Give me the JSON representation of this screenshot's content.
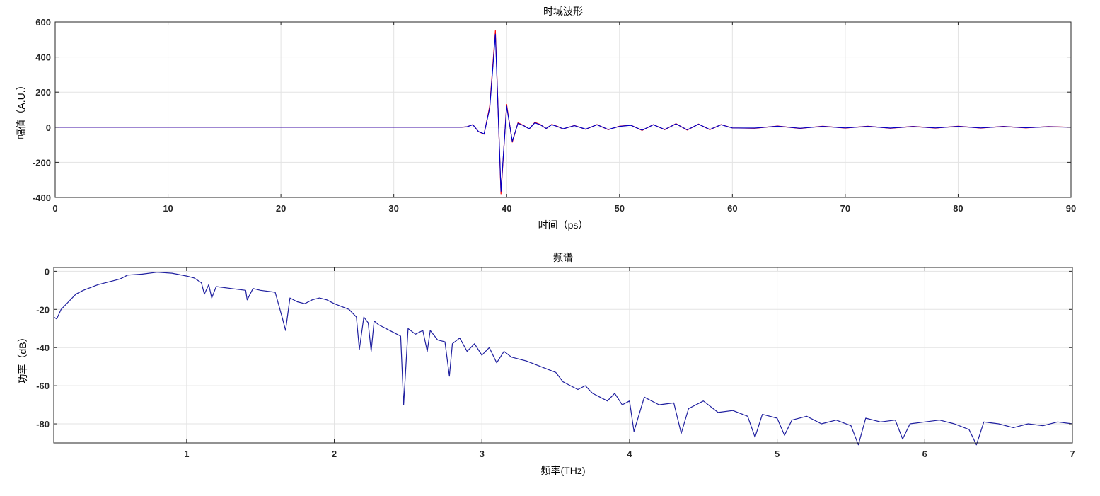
{
  "chart_data": [
    {
      "type": "line",
      "title": "时域波形",
      "xlabel": "时间（ps）",
      "ylabel": "幅值（A.U.）",
      "xlim": [
        0,
        90
      ],
      "ylim": [
        -400,
        600
      ],
      "xticks": [
        0,
        10,
        20,
        30,
        40,
        50,
        60,
        70,
        80,
        90
      ],
      "yticks": [
        -400,
        -200,
        0,
        200,
        400,
        600
      ],
      "grid": true,
      "series": [
        {
          "color": "#ff0000",
          "x": [
            0,
            10,
            20,
            30,
            36,
            36.5,
            37,
            37.5,
            38,
            38.5,
            39,
            39.5,
            40,
            40.5,
            41,
            41.5,
            42,
            42.5,
            43,
            43.5,
            44,
            44.5,
            45,
            46,
            47,
            48,
            49,
            50,
            51,
            52,
            53,
            54,
            55,
            56,
            57,
            58,
            59,
            60,
            62,
            64,
            66,
            68,
            70,
            72,
            74,
            76,
            78,
            80,
            82,
            84,
            86,
            88,
            90
          ],
          "y": [
            0,
            0,
            0,
            0,
            0,
            3,
            15,
            -25,
            -40,
            120,
            550,
            -380,
            130,
            -85,
            25,
            10,
            -10,
            28,
            15,
            -8,
            16,
            5,
            -10,
            10,
            -12,
            15,
            -14,
            6,
            12,
            -18,
            15,
            -14,
            20,
            -16,
            18,
            -14,
            15,
            -4,
            -6,
            7,
            -7,
            6,
            -5,
            6,
            -6,
            5,
            -5,
            6,
            -5,
            5,
            -4,
            4,
            0
          ]
        },
        {
          "color": "#0000c8",
          "x": [
            0,
            10,
            20,
            30,
            36,
            36.5,
            37,
            37.5,
            38,
            38.5,
            39,
            39.5,
            40,
            40.5,
            41,
            41.5,
            42,
            42.5,
            43,
            43.5,
            44,
            44.5,
            45,
            46,
            47,
            48,
            49,
            50,
            51,
            52,
            53,
            54,
            55,
            56,
            57,
            58,
            59,
            60,
            62,
            64,
            66,
            68,
            70,
            72,
            74,
            76,
            78,
            80,
            82,
            84,
            86,
            88,
            90
          ],
          "y": [
            0,
            0,
            0,
            0,
            0,
            3,
            14,
            -24,
            -38,
            110,
            530,
            -365,
            120,
            -80,
            22,
            9,
            -9,
            25,
            13,
            -7,
            14,
            4,
            -9,
            9,
            -11,
            14,
            -13,
            5,
            11,
            -17,
            14,
            -13,
            19,
            -15,
            17,
            -13,
            14,
            -4,
            -5,
            6,
            -6,
            5,
            -4,
            5,
            -5,
            4,
            -4,
            5,
            -4,
            4,
            -3,
            3,
            0
          ]
        }
      ]
    },
    {
      "type": "line",
      "title": "频谱",
      "xlabel": "频率(THz)",
      "ylabel": "功率（dB）",
      "xlim": [
        0.1,
        7
      ],
      "ylim": [
        -90,
        2
      ],
      "xticks": [
        1,
        2,
        3,
        4,
        5,
        6,
        7
      ],
      "yticks": [
        -80,
        -60,
        -40,
        -20,
        0
      ],
      "grid": true,
      "series": [
        {
          "color": "#1f1f9f",
          "x": [
            0.1,
            0.12,
            0.15,
            0.2,
            0.25,
            0.3,
            0.4,
            0.5,
            0.55,
            0.6,
            0.7,
            0.8,
            0.9,
            1.0,
            1.05,
            1.1,
            1.12,
            1.15,
            1.17,
            1.2,
            1.3,
            1.4,
            1.41,
            1.45,
            1.5,
            1.6,
            1.65,
            1.67,
            1.7,
            1.75,
            1.8,
            1.85,
            1.9,
            1.95,
            2.0,
            2.1,
            2.15,
            2.17,
            2.2,
            2.23,
            2.25,
            2.27,
            2.3,
            2.35,
            2.4,
            2.45,
            2.47,
            2.5,
            2.55,
            2.6,
            2.63,
            2.65,
            2.7,
            2.75,
            2.78,
            2.8,
            2.85,
            2.9,
            2.95,
            3.0,
            3.05,
            3.1,
            3.15,
            3.2,
            3.3,
            3.4,
            3.5,
            3.55,
            3.6,
            3.65,
            3.7,
            3.75,
            3.8,
            3.85,
            3.9,
            3.95,
            4.0,
            4.03,
            4.1,
            4.2,
            4.3,
            4.35,
            4.4,
            4.5,
            4.6,
            4.7,
            4.8,
            4.85,
            4.9,
            5.0,
            5.05,
            5.1,
            5.2,
            5.3,
            5.4,
            5.5,
            5.55,
            5.6,
            5.7,
            5.8,
            5.85,
            5.9,
            6.0,
            6.1,
            6.2,
            6.3,
            6.35,
            6.4,
            6.5,
            6.6,
            6.7,
            6.8,
            6.9,
            7.0
          ],
          "y": [
            -24,
            -25,
            -20,
            -16,
            -12,
            -10,
            -7,
            -5,
            -4,
            -2,
            -1.5,
            -0.5,
            -1,
            -2.5,
            -3.5,
            -6,
            -12,
            -7,
            -14,
            -8,
            -9,
            -10,
            -15,
            -9,
            -10,
            -11,
            -25,
            -31,
            -14,
            -16,
            -17,
            -15,
            -14,
            -15,
            -17,
            -20,
            -24,
            -41,
            -24,
            -27,
            -42,
            -26,
            -28,
            -30,
            -32,
            -34,
            -70,
            -30,
            -33,
            -31,
            -42,
            -31,
            -36,
            -37,
            -55,
            -38,
            -35,
            -42,
            -38,
            -44,
            -40,
            -48,
            -42,
            -45,
            -47,
            -50,
            -53,
            -58,
            -60,
            -62,
            -60,
            -64,
            -66,
            -68,
            -64,
            -70,
            -68,
            -84,
            -66,
            -70,
            -69,
            -85,
            -72,
            -68,
            -74,
            -73,
            -76,
            -87,
            -75,
            -77,
            -86,
            -78,
            -76,
            -80,
            -78,
            -81,
            -91,
            -77,
            -79,
            -78,
            -88,
            -80,
            -79,
            -78,
            -80,
            -83,
            -91,
            -79,
            -80,
            -82,
            -80,
            -81,
            -79,
            -80
          ]
        }
      ]
    }
  ]
}
